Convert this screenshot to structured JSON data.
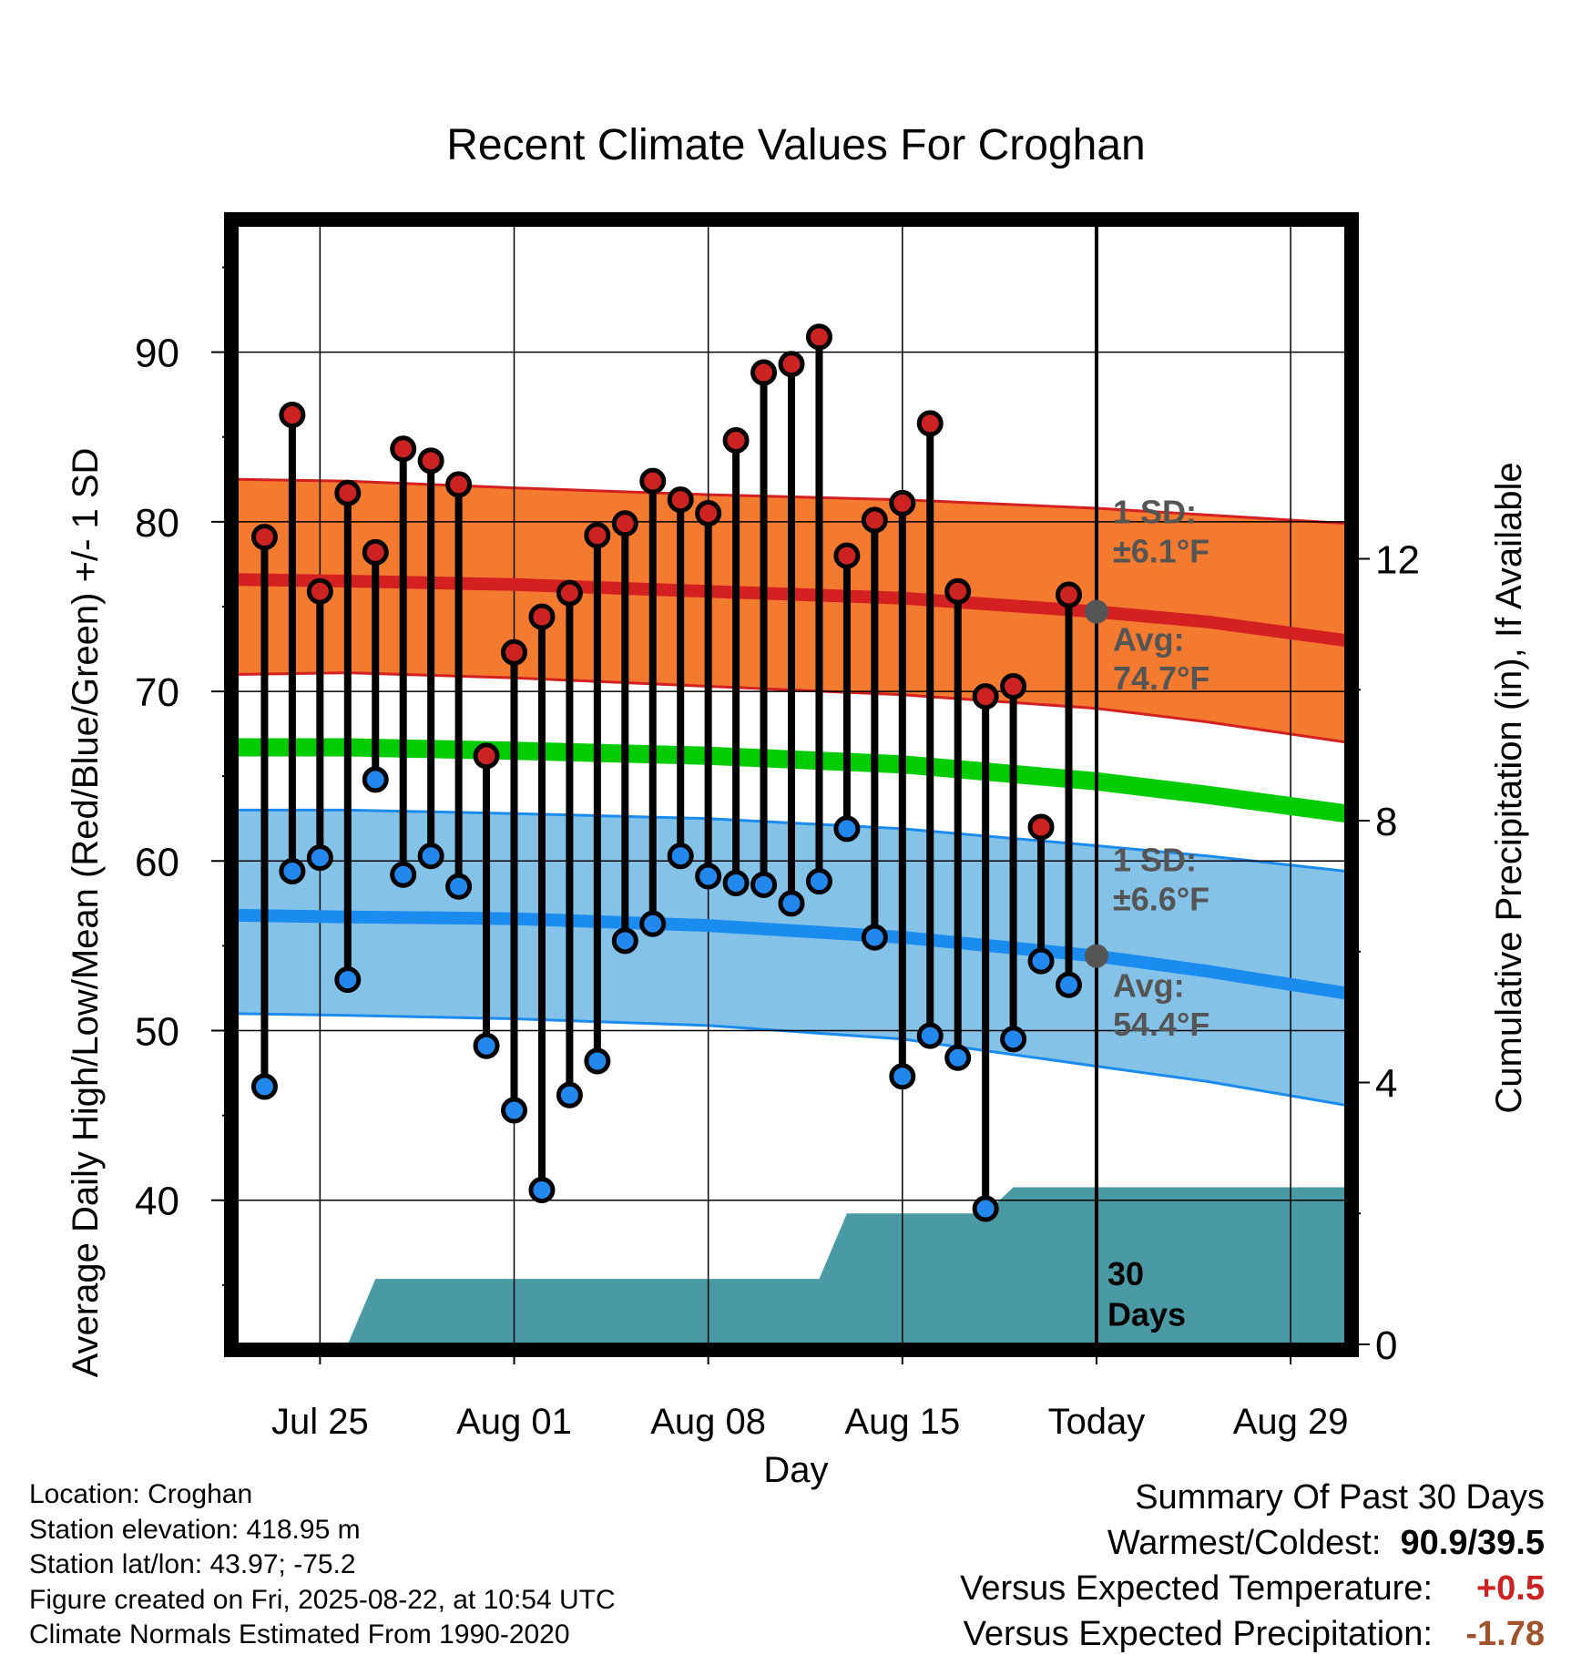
{
  "colors": {
    "high_dot": "#cc2222",
    "low_dot": "#2288ee",
    "high_band": "#f47a30",
    "high_line": "#d42020",
    "low_band": "#85c2e8",
    "low_line": "#1a8cf0",
    "mean_line": "#00cc00",
    "precip": "#4a9aa5",
    "marker": "#555555",
    "warm_value": "#cc2222",
    "precip_value": "#a0522d"
  },
  "chart_data": {
    "type": "line",
    "title": "Recent Climate Values For Croghan",
    "xlabel": "Day",
    "ylabel": "Average Daily High/Low/Mean (Red/Blue/Green) +/- 1 SD",
    "y2label": "Cumulative Precipitation (in), If Available",
    "x_tick_labels": [
      "Jul 25",
      "Aug 01",
      "Aug 08",
      "Aug 15",
      "Today",
      "Aug 29"
    ],
    "x_tick_dates": [
      "2025-07-25",
      "2025-08-01",
      "2025-08-08",
      "2025-08-15",
      "2025-08-22",
      "2025-08-29"
    ],
    "x_range": [
      "2025-07-22",
      "2025-08-31"
    ],
    "today": "2025-08-22",
    "ylim": [
      31.5,
      97.5
    ],
    "yticks": [
      40,
      50,
      60,
      70,
      80,
      90
    ],
    "y2lim": [
      0,
      17.1
    ],
    "y2ticks": [
      0,
      4,
      8,
      12
    ],
    "grid": true,
    "daily": {
      "dates": [
        "2025-07-23",
        "2025-07-24",
        "2025-07-25",
        "2025-07-26",
        "2025-07-27",
        "2025-07-28",
        "2025-07-29",
        "2025-07-30",
        "2025-07-31",
        "2025-08-01",
        "2025-08-02",
        "2025-08-03",
        "2025-08-04",
        "2025-08-05",
        "2025-08-06",
        "2025-08-07",
        "2025-08-08",
        "2025-08-09",
        "2025-08-10",
        "2025-08-11",
        "2025-08-12",
        "2025-08-13",
        "2025-08-14",
        "2025-08-15",
        "2025-08-16",
        "2025-08-17",
        "2025-08-18",
        "2025-08-19",
        "2025-08-20",
        "2025-08-21"
      ],
      "high": [
        79.1,
        86.3,
        75.9,
        81.7,
        78.2,
        84.3,
        83.6,
        82.2,
        66.2,
        72.3,
        74.4,
        75.8,
        79.2,
        79.9,
        82.4,
        81.3,
        80.5,
        84.8,
        88.8,
        89.3,
        90.9,
        78.0,
        80.1,
        81.1,
        85.8,
        75.9,
        69.7,
        70.3,
        62.0,
        75.7
      ],
      "low": [
        46.7,
        59.4,
        60.2,
        53.0,
        64.8,
        59.2,
        60.3,
        58.5,
        49.1,
        45.3,
        40.6,
        46.2,
        48.2,
        55.3,
        56.3,
        60.3,
        59.1,
        58.7,
        58.6,
        57.5,
        58.8,
        61.9,
        55.5,
        47.3,
        49.7,
        48.4,
        39.5,
        49.5,
        54.1,
        52.7
      ]
    },
    "normals": {
      "dates": [
        "2025-07-22",
        "2025-07-26",
        "2025-08-01",
        "2025-08-08",
        "2025-08-15",
        "2025-08-22",
        "2025-08-26",
        "2025-08-31"
      ],
      "high_mean": [
        76.6,
        76.5,
        76.3,
        75.9,
        75.5,
        74.7,
        74.1,
        73.0
      ],
      "high_upper": [
        82.5,
        82.4,
        82.0,
        81.6,
        81.3,
        80.8,
        80.4,
        79.9
      ],
      "high_lower": [
        71.0,
        71.1,
        70.8,
        70.3,
        69.8,
        69.0,
        68.2,
        67.0
      ],
      "mean": [
        66.7,
        66.7,
        66.5,
        66.2,
        65.7,
        64.7,
        63.9,
        62.8
      ],
      "low_mean": [
        56.8,
        56.7,
        56.6,
        56.2,
        55.5,
        54.4,
        53.5,
        52.2
      ],
      "low_upper": [
        63.0,
        63.0,
        62.8,
        62.5,
        61.9,
        60.9,
        60.3,
        59.4
      ],
      "low_lower": [
        51.0,
        50.9,
        50.7,
        50.3,
        49.5,
        47.9,
        47.0,
        45.6
      ]
    },
    "precip": {
      "dates": [
        "2025-07-22",
        "2025-07-26",
        "2025-07-27",
        "2025-08-12",
        "2025-08-13",
        "2025-08-18",
        "2025-08-19",
        "2025-08-20",
        "2025-08-31"
      ],
      "values": [
        0,
        0,
        1.0,
        1.0,
        2.0,
        2.0,
        2.4,
        2.4,
        2.4
      ]
    },
    "annotations": {
      "high_sd_line1": "1 SD:",
      "high_sd_line2": "±6.1°F",
      "high_avg_line1": "Avg:",
      "high_avg_line2": "74.7°F",
      "low_sd_line1": "1 SD:",
      "low_sd_line2": "±6.6°F",
      "low_avg_line1": "Avg:",
      "low_avg_line2": "54.4°F",
      "precip_line1": "30",
      "precip_line2": "Days"
    }
  },
  "footer": {
    "location": "Location: Croghan",
    "elevation": "Station elevation: 418.95 m",
    "latlon": "Station lat/lon: 43.97; -75.2",
    "created": "Figure created on Fri, 2025-08-22, at 10:54 UTC",
    "normals": "Climate Normals Estimated From 1990-2020"
  },
  "summary": {
    "heading": "Summary Of Past 30 Days",
    "warm_label": "Warmest/Coldest:",
    "warm_value": "90.9/39.5",
    "temp_label": "Versus Expected Temperature:",
    "temp_value": "+0.5",
    "precip_label": "Versus Expected Precipitation:",
    "precip_value": "-1.78"
  }
}
